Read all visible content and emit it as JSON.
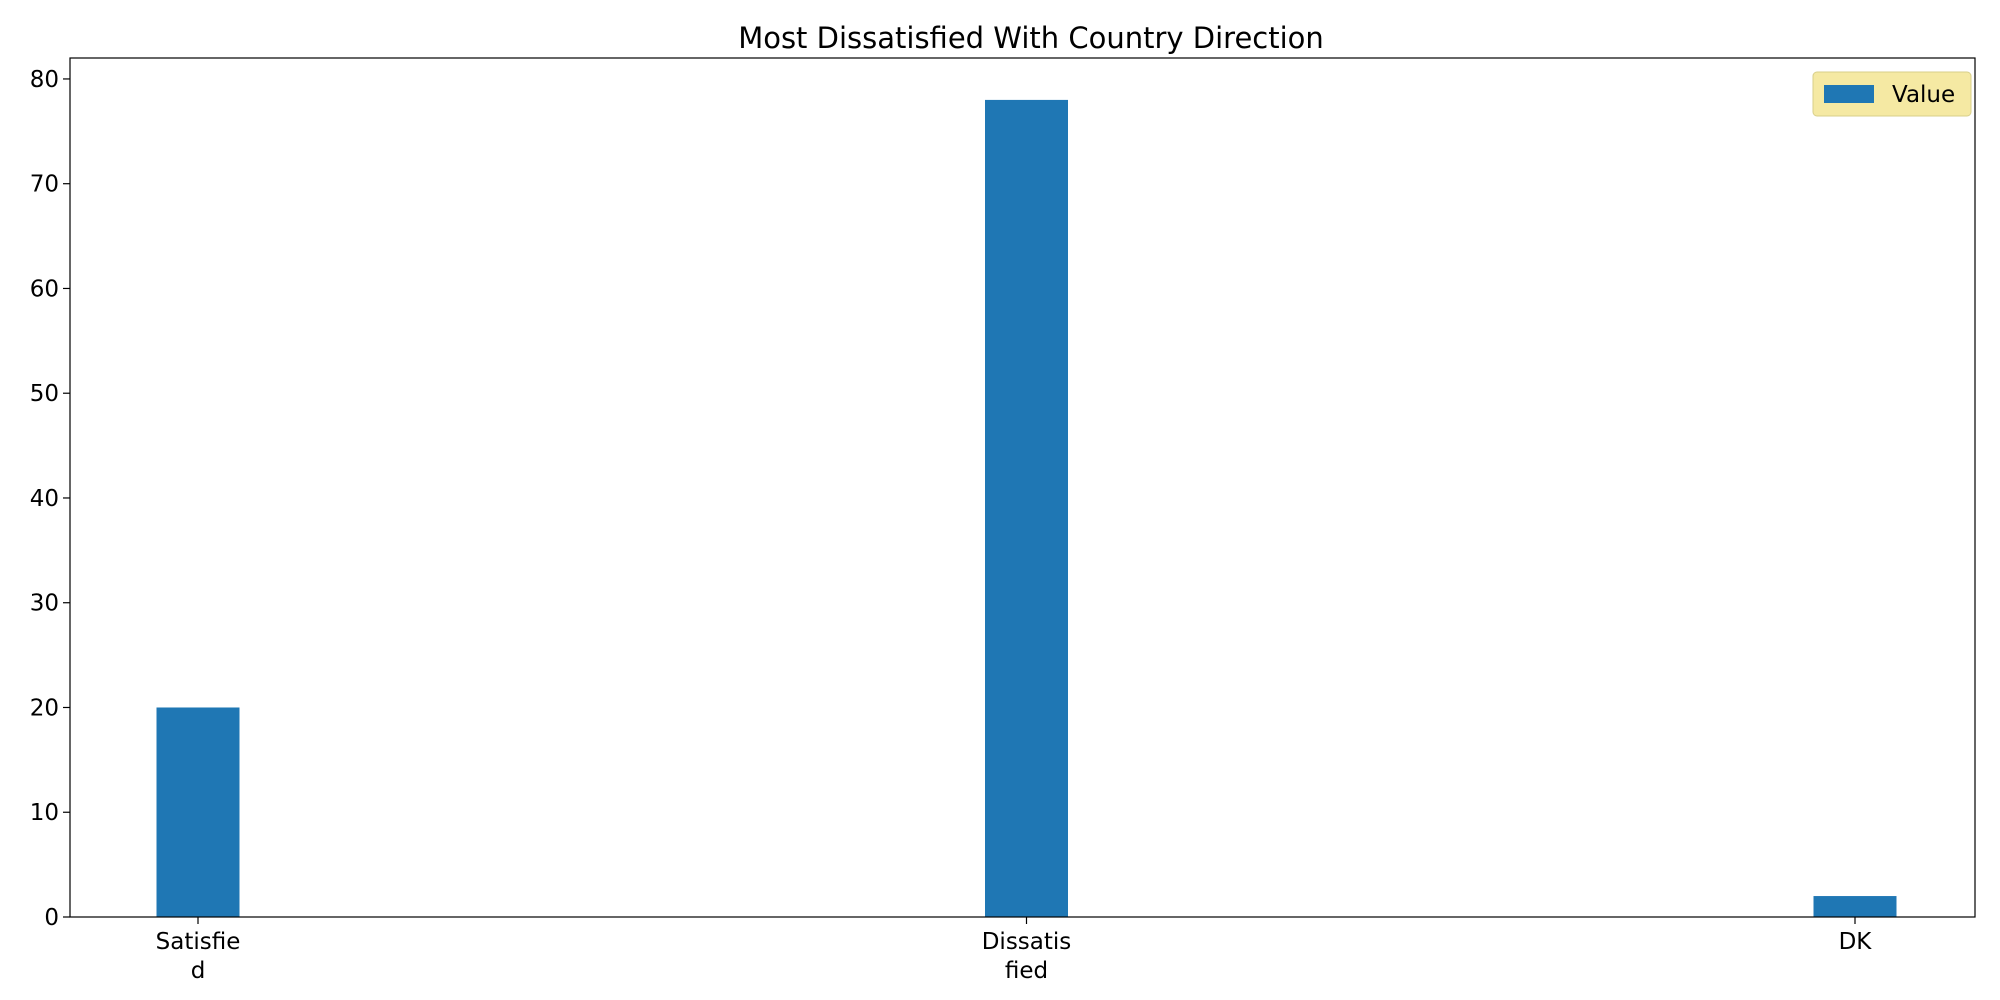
{
  "chart_data": {
    "type": "bar",
    "title": "Most Dissatisfied With Country Direction",
    "xlabel": "",
    "ylabel": "",
    "categories": [
      [
        "Satisfie",
        "d"
      ],
      [
        "Dissatis",
        "fied"
      ],
      [
        "DK"
      ]
    ],
    "series": [
      {
        "name": "Value",
        "values": [
          20,
          78,
          2
        ]
      }
    ],
    "ylim": [
      0,
      82
    ],
    "yticks": [
      0,
      10,
      20,
      30,
      40,
      50,
      60,
      70,
      80
    ],
    "grid": false,
    "legend": {
      "entries": [
        "Value"
      ],
      "placement": "top-right",
      "background": "#f5e9a3"
    },
    "colors": {
      "bar": "#1f77b4",
      "axis": "#000000"
    }
  }
}
